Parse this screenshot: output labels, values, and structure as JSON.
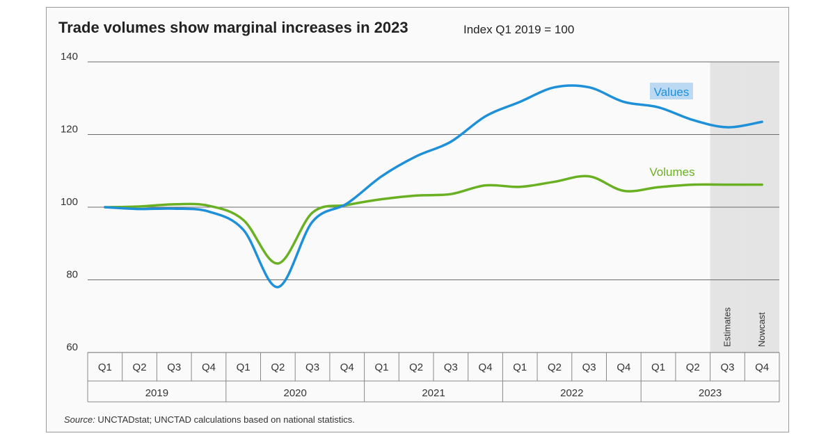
{
  "chart_data": {
    "type": "line",
    "title": "Trade volumes show marginal increases in 2023",
    "subtitle": "Index Q1 2019 = 100",
    "ylim": [
      60,
      140
    ],
    "yticks": [
      60,
      80,
      100,
      120,
      140
    ],
    "grid": true,
    "categories": [
      "Q1",
      "Q2",
      "Q3",
      "Q4",
      "Q1",
      "Q2",
      "Q3",
      "Q4",
      "Q1",
      "Q2",
      "Q3",
      "Q4",
      "Q1",
      "Q2",
      "Q3",
      "Q4",
      "Q1",
      "Q2",
      "Q3",
      "Q4"
    ],
    "years": [
      "2019",
      "2020",
      "2021",
      "2022",
      "2023"
    ],
    "series": [
      {
        "name": "Values",
        "color": "#1e90d8",
        "values": [
          100,
          99.5,
          99.6,
          98.8,
          93.8,
          78,
          96,
          101,
          108.5,
          114,
          118,
          125,
          129,
          133,
          133,
          129,
          127.5,
          124,
          122,
          123.5
        ]
      },
      {
        "name": "Volumes",
        "color": "#6ab023",
        "values": [
          100,
          100.2,
          100.8,
          100.4,
          96.5,
          84.5,
          98.5,
          100.6,
          102.2,
          103.2,
          103.6,
          106,
          105.6,
          107,
          108.5,
          104.5,
          105.5,
          106.2,
          106.2,
          106.2
        ]
      }
    ],
    "shaded_periods": [
      {
        "label": "Estimates",
        "index": 18
      },
      {
        "label": "Nowcast",
        "index": 19
      }
    ]
  },
  "source": {
    "prefix": "Source:",
    "text": " UNCTADstat; UNCTAD calculations based on national statistics."
  }
}
